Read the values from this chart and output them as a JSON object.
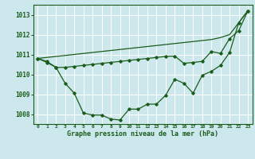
{
  "title": "Graphe pression niveau de la mer (hPa)",
  "background_color": "#cce8ec",
  "grid_color": "#ffffff",
  "line_color": "#1a5c1a",
  "x_labels": [
    "0",
    "1",
    "2",
    "3",
    "4",
    "5",
    "6",
    "7",
    "8",
    "9",
    "10",
    "11",
    "12",
    "13",
    "14",
    "15",
    "16",
    "17",
    "18",
    "19",
    "20",
    "21",
    "22",
    "23"
  ],
  "ylim": [
    1007.5,
    1013.5
  ],
  "yticks": [
    1008,
    1009,
    1010,
    1011,
    1012,
    1013
  ],
  "line1": [
    1010.8,
    1010.85,
    1010.9,
    1010.95,
    1011.0,
    1011.05,
    1011.1,
    1011.15,
    1011.2,
    1011.25,
    1011.3,
    1011.35,
    1011.4,
    1011.45,
    1011.5,
    1011.55,
    1011.6,
    1011.65,
    1011.7,
    1011.75,
    1011.85,
    1012.0,
    1012.6,
    1013.2
  ],
  "line2": [
    1010.8,
    1010.65,
    1010.35,
    1010.35,
    1010.4,
    1010.45,
    1010.5,
    1010.55,
    1010.6,
    1010.65,
    1010.7,
    1010.75,
    1010.8,
    1010.85,
    1010.9,
    1010.92,
    1010.55,
    1010.6,
    1010.65,
    1011.15,
    1011.05,
    1011.8,
    1012.2,
    1013.2
  ],
  "line3": [
    1010.8,
    1010.6,
    1010.35,
    1009.55,
    1009.05,
    1008.05,
    1007.95,
    1007.95,
    1007.75,
    1007.7,
    1008.25,
    1008.25,
    1008.5,
    1008.5,
    1008.95,
    1009.75,
    1009.55,
    1009.05,
    1009.95,
    1010.15,
    1010.45,
    1011.1,
    1012.6,
    1013.2
  ]
}
